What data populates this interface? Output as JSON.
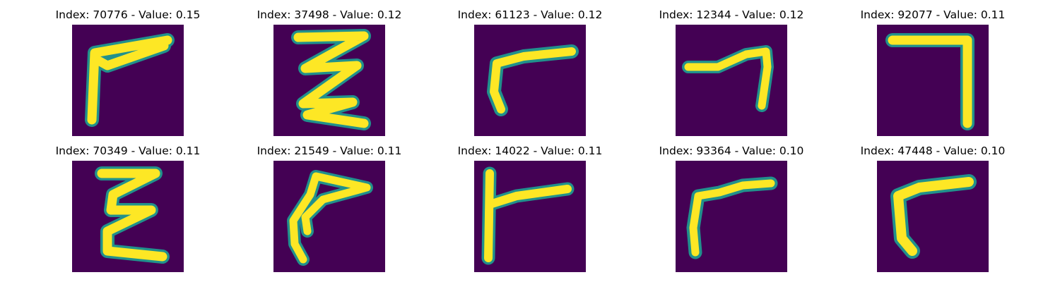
{
  "colors": {
    "background": "#440154",
    "stroke": "#fde725",
    "edge": "#21918c"
  },
  "panels": [
    {
      "title": "Index: 70776 - Value: 0.15",
      "index": 70776,
      "value": 0.15
    },
    {
      "title": "Index: 37498 - Value: 0.12",
      "index": 37498,
      "value": 0.12
    },
    {
      "title": "Index: 61123 - Value: 0.12",
      "index": 61123,
      "value": 0.12
    },
    {
      "title": "Index: 12344 - Value: 0.12",
      "index": 12344,
      "value": 0.12
    },
    {
      "title": "Index: 92077 - Value: 0.11",
      "index": 92077,
      "value": 0.11
    },
    {
      "title": "Index: 70349 - Value: 0.11",
      "index": 70349,
      "value": 0.11
    },
    {
      "title": "Index: 21549 - Value: 0.11",
      "index": 21549,
      "value": 0.11
    },
    {
      "title": "Index: 14022 - Value: 0.11",
      "index": 14022,
      "value": 0.11
    },
    {
      "title": "Index: 93364 - Value: 0.10",
      "index": 93364,
      "value": 0.1
    },
    {
      "title": "Index: 47448 - Value: 0.10",
      "index": 47448,
      "value": 0.1
    }
  ]
}
